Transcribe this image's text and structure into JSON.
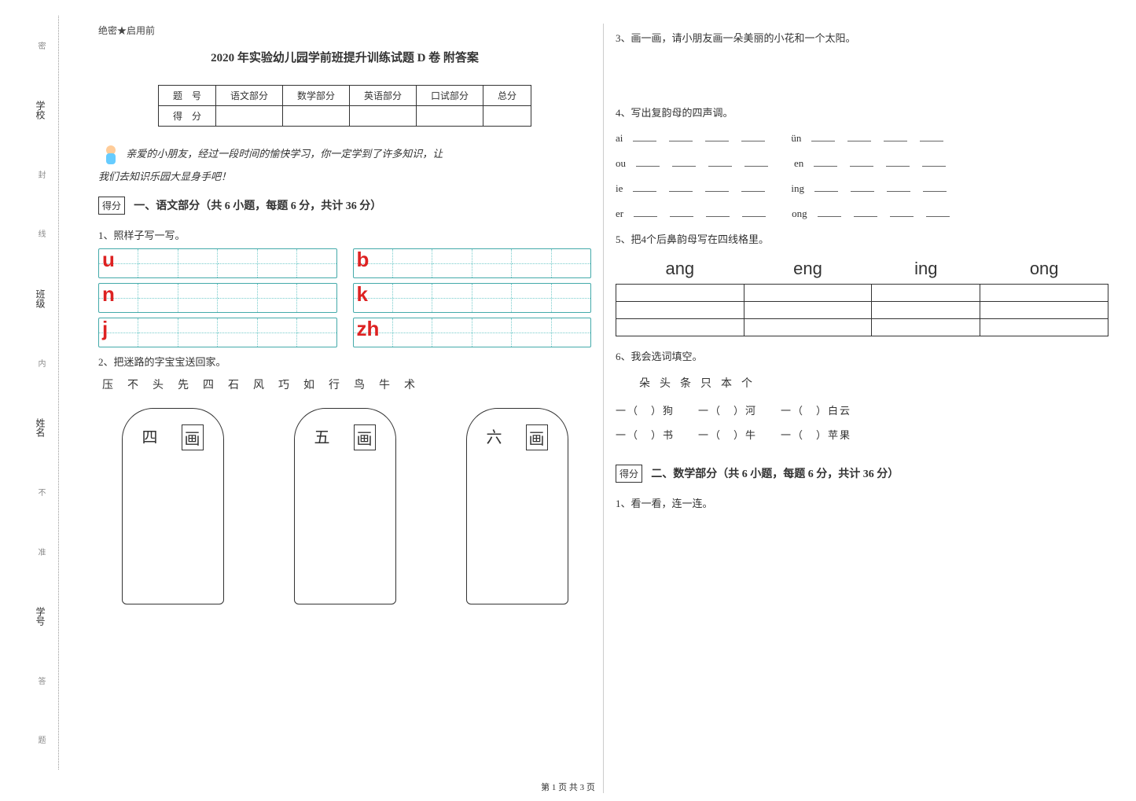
{
  "binding": {
    "labels": [
      "学校",
      "班级",
      "姓名",
      "学号"
    ],
    "hints": [
      "密",
      "封",
      "线",
      "内",
      "不",
      "准",
      "答",
      "题"
    ]
  },
  "header": {
    "secret": "绝密★启用前",
    "title": "2020 年实验幼儿园学前班提升训练试题 D 卷  附答案"
  },
  "scoreTable": {
    "row1": [
      "题　号",
      "语文部分",
      "数学部分",
      "英语部分",
      "口试部分",
      "总分"
    ],
    "row2": "得　分"
  },
  "intro": {
    "line1": "亲爱的小朋友，经过一段时间的愉快学习，你一定学到了许多知识，让",
    "line2": "我们去知识乐园大显身手吧！",
    "scoreLabel": "得分"
  },
  "section1": {
    "title": "一、语文部分（共 6 小题，每题 6 分，共计 36 分）",
    "q1": {
      "text": "1、照样子写一写。",
      "letters": [
        "u",
        "b",
        "n",
        "k",
        "j",
        "zh"
      ],
      "cellsPerGrid": 6,
      "gridColor": "#4aaaa0",
      "letterColor": "#d22222"
    },
    "q2": {
      "text": "2、把迷路的字宝宝送回家。",
      "chars": [
        "压",
        "不",
        "头",
        "先",
        "四",
        "石",
        "风",
        "巧",
        "如",
        "行",
        "鸟",
        "牛",
        "术"
      ],
      "boxes": [
        {
          "num": "四",
          "label": "画"
        },
        {
          "num": "五",
          "label": "画"
        },
        {
          "num": "六",
          "label": "画"
        }
      ]
    }
  },
  "section1b": {
    "q3": "3、画一画，请小朋友画一朵美丽的小花和一个太阳。",
    "q4": {
      "text": "4、写出复韵母的四声调。",
      "items": [
        "ai",
        "ün",
        "ou",
        "en",
        "ie",
        "ing",
        "er",
        "ong"
      ]
    },
    "q5": {
      "text": "5、把4个后鼻韵母写在四线格里。",
      "headers": [
        "ang",
        "eng",
        "ing",
        "ong"
      ]
    },
    "q6": {
      "text": "6、我会选词填空。",
      "bank": [
        "朵",
        "头",
        "条",
        "只",
        "本",
        "个"
      ],
      "lines": [
        [
          "一（　）狗",
          "一（　）河",
          "一（　）白云"
        ],
        [
          "一（　）书",
          "一（　）牛",
          "一（　）苹果"
        ]
      ]
    }
  },
  "section2": {
    "scoreLabel": "得分",
    "title": "二、数学部分（共 6 小题，每题 6 分，共计 36 分）",
    "q1": "1、看一看，连一连。"
  },
  "footer": "第 1 页  共 3 页",
  "colors": {
    "letterRed": "#d22222",
    "gridTeal": "#4aaaa0",
    "text": "#333333",
    "dotted": "#999999"
  }
}
